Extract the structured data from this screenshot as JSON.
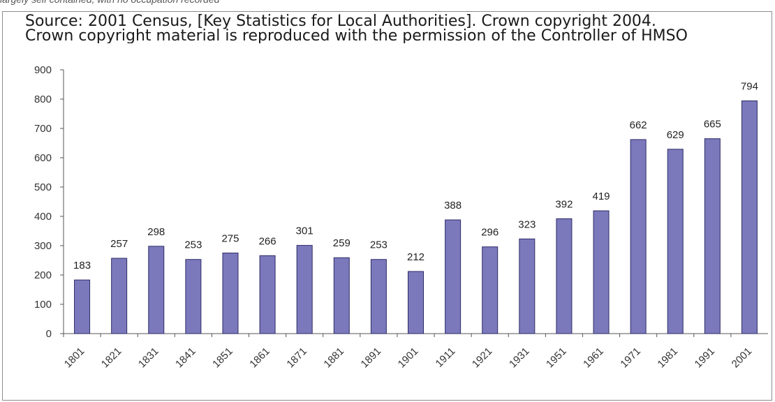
{
  "page": {
    "caption": "largely self contained, with no occupation recorded",
    "source_line_1": "Source: 2001 Census, [Key Statistics for Local Authorities]. Crown copyright 2004.",
    "source_line_2": "Crown copyright material is reproduced with the permission of the Controller of HMSO"
  },
  "chart_data": {
    "type": "bar",
    "categories": [
      "1801",
      "1821",
      "1831",
      "1841",
      "1851",
      "1861",
      "1871",
      "1881",
      "1891",
      "1901",
      "1911",
      "1921",
      "1931",
      "1951",
      "1961",
      "1971",
      "1981",
      "1991",
      "2001"
    ],
    "values": [
      183,
      257,
      298,
      253,
      275,
      266,
      301,
      259,
      253,
      212,
      388,
      296,
      323,
      392,
      419,
      662,
      629,
      665,
      794
    ],
    "ylim": [
      0,
      900
    ],
    "yticks": [
      0,
      100,
      200,
      300,
      400,
      500,
      600,
      700,
      800,
      900
    ],
    "grid": false,
    "legend": "none",
    "bar_color": "#7b79bc",
    "bar_edge_color": "#2e2c66",
    "title": "",
    "xlabel": "",
    "ylabel": ""
  }
}
